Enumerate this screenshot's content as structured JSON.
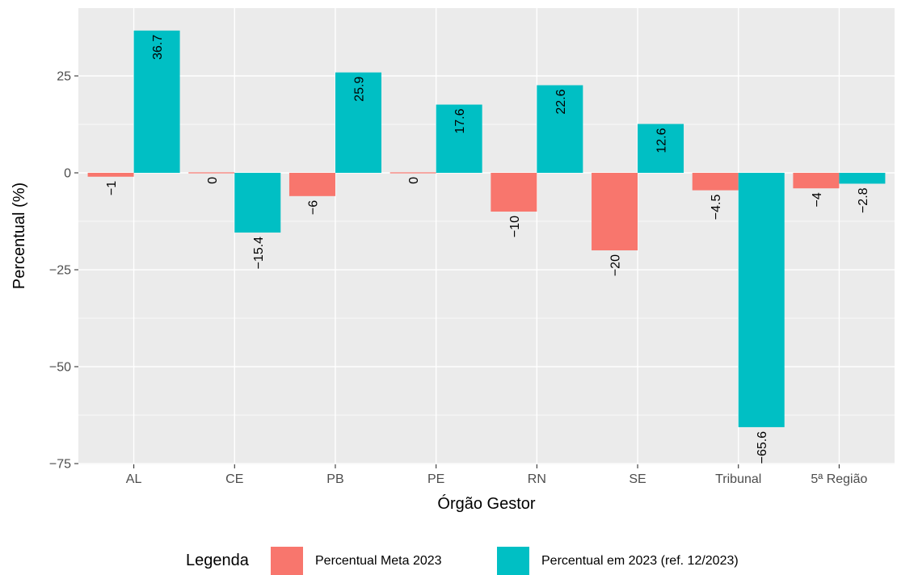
{
  "chart_data": {
    "type": "bar",
    "title": "",
    "xlabel": "Órgão Gestor",
    "ylabel": "Percentual (%)",
    "categories": [
      "AL",
      "CE",
      "PB",
      "PE",
      "RN",
      "SE",
      "Tribunal",
      "5ª Região"
    ],
    "series": [
      {
        "name": "Percentual Meta 2023",
        "color": "#F8766D",
        "values": [
          -1,
          0,
          -6,
          0,
          -10,
          -20,
          -4.5,
          -4
        ],
        "labels": [
          "−1",
          "0",
          "−6",
          "0",
          "−10",
          "−20",
          "−4.5",
          "−4"
        ]
      },
      {
        "name": "Percentual em 2023 (ref. 12/2023)",
        "color": "#00BFC4",
        "values": [
          36.7,
          -15.4,
          25.9,
          17.6,
          22.6,
          12.6,
          -65.6,
          -2.8
        ],
        "labels": [
          "36.7",
          "−15.4",
          "25.9",
          "17.6",
          "22.6",
          "12.6",
          "−65.6",
          "−2.8"
        ]
      }
    ],
    "ylim": [
      -75.2,
      42.5
    ],
    "yticks": [
      25,
      0,
      -25,
      -50,
      -75
    ],
    "ytick_labels": [
      "25",
      "0",
      "−25",
      "−50",
      "−75"
    ],
    "legend_title": "Legenda",
    "legend_position": "bottom",
    "grid": true,
    "panel_background": "#EBEBEB",
    "grid_color": "#FFFFFF"
  }
}
